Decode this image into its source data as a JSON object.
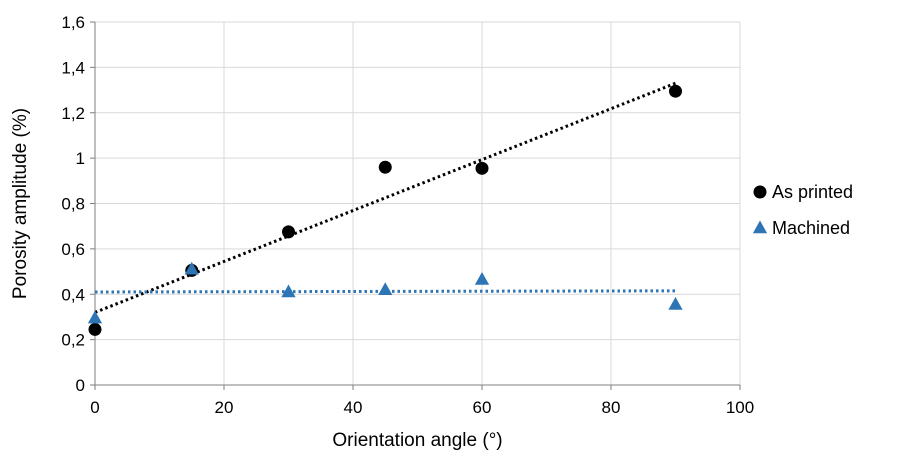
{
  "chart_data": {
    "type": "scatter",
    "title": "",
    "xlabel": "Orientation angle (°)",
    "ylabel": "Porosity amplitude (%)",
    "xlim": [
      0,
      100
    ],
    "ylim": [
      0,
      1.6
    ],
    "x_ticks": [
      0,
      20,
      40,
      60,
      80,
      100
    ],
    "x_tick_labels": [
      "0",
      "20",
      "40",
      "60",
      "80",
      "100"
    ],
    "y_ticks": [
      0,
      0.2,
      0.4,
      0.6,
      0.8,
      1.0,
      1.2,
      1.4,
      1.6
    ],
    "y_tick_labels": [
      "0",
      "0,2",
      "0,4",
      "0,6",
      "0,8",
      "1",
      "1,2",
      "1,4",
      "1,6"
    ],
    "grid": true,
    "legend_position": "right",
    "series": [
      {
        "name": "As printed",
        "marker": "circle",
        "color": "#000000",
        "x": [
          0,
          15,
          30,
          45,
          60,
          90
        ],
        "y": [
          0.245,
          0.505,
          0.675,
          0.96,
          0.955,
          1.295
        ],
        "trendline": {
          "type": "linear",
          "x": [
            0,
            90
          ],
          "y": [
            0.32,
            1.33
          ],
          "color": "#000000",
          "style": "dotted"
        }
      },
      {
        "name": "Machined",
        "marker": "triangle",
        "color": "#2E75B6",
        "x": [
          0,
          15,
          30,
          45,
          60,
          90
        ],
        "y": [
          0.295,
          0.51,
          0.41,
          0.42,
          0.465,
          0.355
        ],
        "trendline": {
          "type": "linear",
          "x": [
            0,
            90
          ],
          "y": [
            0.41,
            0.415
          ],
          "color": "#2E75B6",
          "style": "dotted"
        }
      }
    ]
  }
}
